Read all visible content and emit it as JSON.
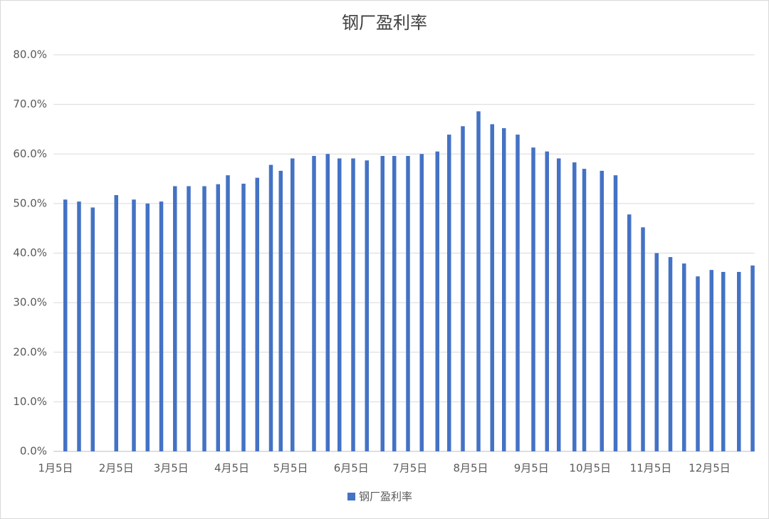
{
  "chart_data": {
    "type": "bar",
    "title": "钢厂盈利率",
    "series": [
      {
        "name": "钢厂盈利率",
        "color": "#4472c4",
        "x": [
          5,
          12,
          19,
          31,
          40,
          47,
          54,
          61,
          68,
          76,
          83,
          88,
          96,
          103,
          110,
          115,
          121,
          132,
          139,
          145,
          152,
          159,
          167,
          173,
          180,
          187,
          195,
          201,
          208,
          216,
          223,
          229,
          236,
          244,
          251,
          257,
          265,
          270,
          279,
          286,
          293,
          300,
          307,
          314,
          321,
          328,
          335,
          341,
          349,
          356
        ],
        "values": [
          50.8,
          50.4,
          49.2,
          51.7,
          50.8,
          50.0,
          50.4,
          53.5,
          53.5,
          53.5,
          53.9,
          55.7,
          54.0,
          55.2,
          57.8,
          56.6,
          59.1,
          59.6,
          60.0,
          59.1,
          59.1,
          58.7,
          59.6,
          59.6,
          59.6,
          60.0,
          60.5,
          63.9,
          65.6,
          68.6,
          66.0,
          65.2,
          63.9,
          61.3,
          60.5,
          59.1,
          58.3,
          57.0,
          56.6,
          55.7,
          47.8,
          45.2,
          40.0,
          39.2,
          37.9,
          35.3,
          36.6,
          36.2,
          36.2,
          37.5
        ]
      }
    ],
    "xlim": [
      -1,
      357
    ],
    "xticks": [
      {
        "value": 0,
        "label": "1月5日"
      },
      {
        "value": 31,
        "label": "2月5日"
      },
      {
        "value": 59,
        "label": "3月5日"
      },
      {
        "value": 90,
        "label": "4月5日"
      },
      {
        "value": 120,
        "label": "5月5日"
      },
      {
        "value": 151,
        "label": "6月5日"
      },
      {
        "value": 181,
        "label": "7月5日"
      },
      {
        "value": 212,
        "label": "8月5日"
      },
      {
        "value": 243,
        "label": "9月5日"
      },
      {
        "value": 273,
        "label": "10月5日"
      },
      {
        "value": 304,
        "label": "11月5日"
      },
      {
        "value": 334,
        "label": "12月5日"
      }
    ],
    "ylim": [
      0,
      80
    ],
    "yticks": [
      {
        "value": 0,
        "label": "0.0%"
      },
      {
        "value": 10,
        "label": "10.0%"
      },
      {
        "value": 20,
        "label": "20.0%"
      },
      {
        "value": 30,
        "label": "30.0%"
      },
      {
        "value": 40,
        "label": "40.0%"
      },
      {
        "value": 50,
        "label": "50.0%"
      },
      {
        "value": 60,
        "label": "60.0%"
      },
      {
        "value": 70,
        "label": "70.0%"
      },
      {
        "value": 80,
        "label": "80.0%"
      }
    ],
    "grid": true,
    "legend": "bottom"
  }
}
